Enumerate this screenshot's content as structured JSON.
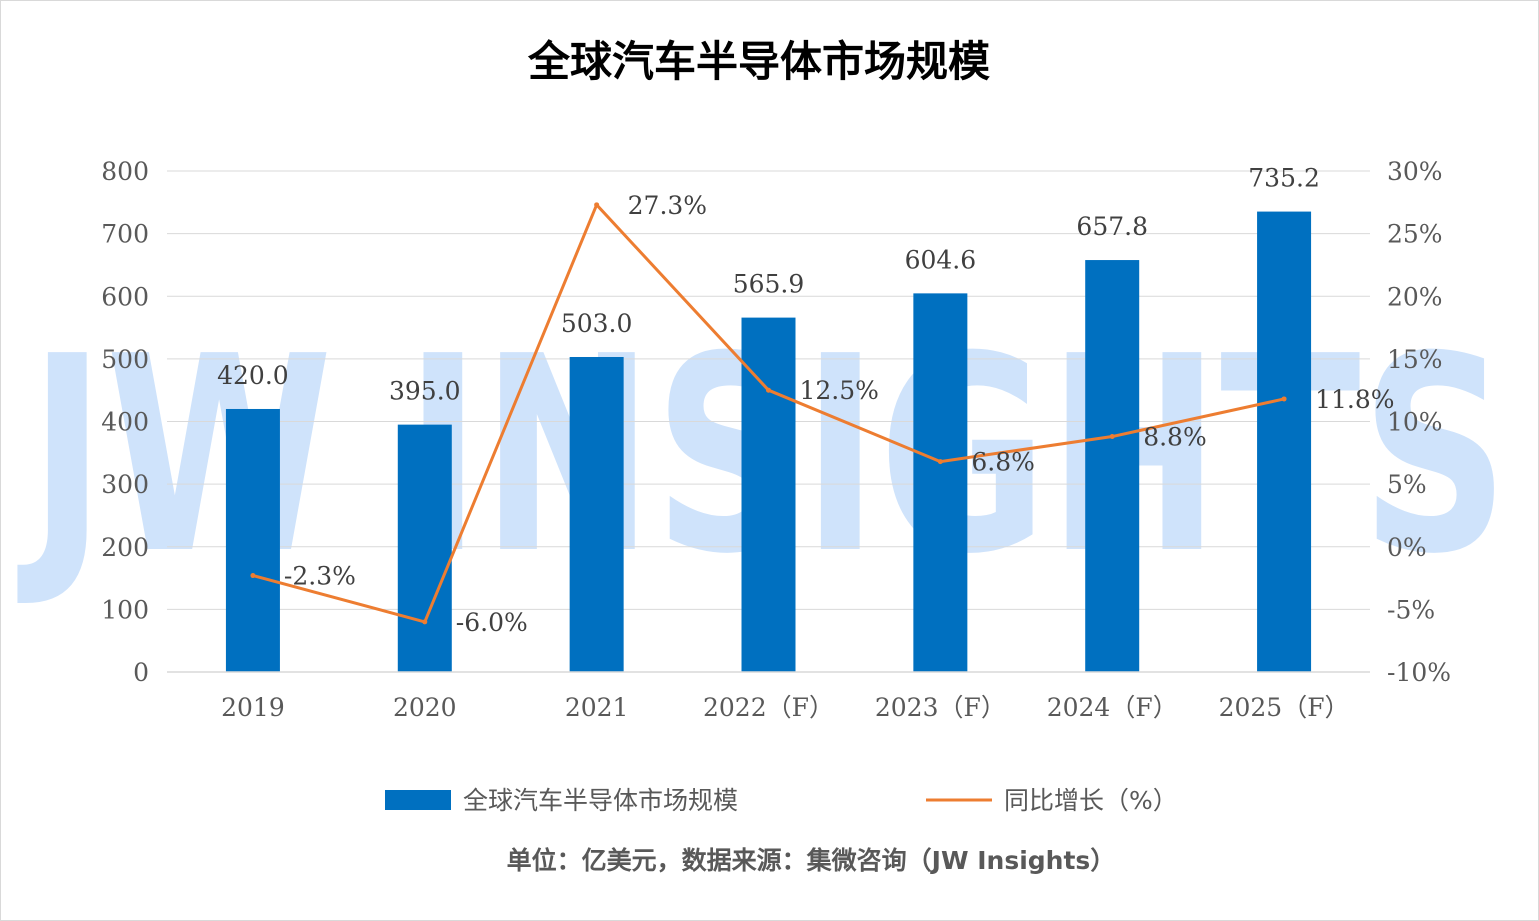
{
  "chart_data": {
    "type": "bar",
    "title": "全球汽车半导体市场规模",
    "categories": [
      "2019",
      "2020",
      "2021",
      "2022（F）",
      "2023（F）",
      "2024（F）",
      "2025（F）"
    ],
    "series": [
      {
        "name": "全球汽车半导体市场规模",
        "type": "bar",
        "axis": "left",
        "color": "#0070c0",
        "values": [
          420.0,
          395.0,
          503.0,
          565.9,
          604.6,
          657.8,
          735.2
        ],
        "labels": [
          "420.0",
          "395.0",
          "503.0",
          "565.9",
          "604.6",
          "657.8",
          "735.2"
        ]
      },
      {
        "name": "同比增长（%）",
        "type": "line",
        "axis": "right",
        "color": "#ed7d31",
        "values": [
          -2.3,
          -6.0,
          27.3,
          12.5,
          6.8,
          8.8,
          11.8
        ],
        "labels": [
          "-2.3%",
          "-6.0%",
          "27.3%",
          "12.5%",
          "6.8%",
          "8.8%",
          "11.8%"
        ]
      }
    ],
    "y_left": {
      "range": [
        0,
        800
      ],
      "ticks": [
        0,
        100,
        200,
        300,
        400,
        500,
        600,
        700,
        800
      ],
      "tick_labels": [
        "0",
        "100",
        "200",
        "300",
        "400",
        "500",
        "600",
        "700",
        "800"
      ]
    },
    "y_right": {
      "range": [
        -10,
        30
      ],
      "ticks": [
        -10,
        -5,
        0,
        5,
        10,
        15,
        20,
        25,
        30
      ],
      "tick_labels": [
        "-10%",
        "-5%",
        "0%",
        "5%",
        "10%",
        "15%",
        "20%",
        "25%",
        "30%"
      ]
    },
    "grid": true,
    "legend_position": "bottom",
    "watermark": "JW INSIGHTS",
    "note": "单位：亿美元，数据来源：集微咨询（JW Insights）"
  }
}
